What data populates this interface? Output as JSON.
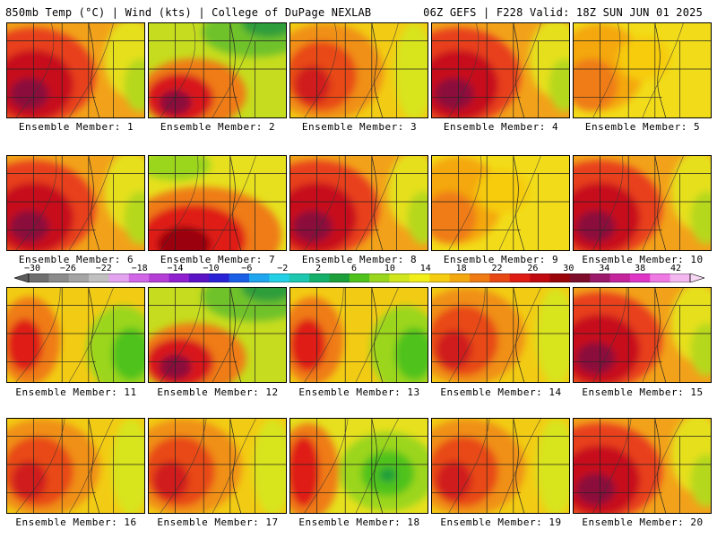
{
  "header": {
    "left": "850mb Temp (°C) | Wind (kts) | College of DuPage NEXLAB",
    "right": "06Z GEFS | F228 Valid: 18Z SUN JUN 01 2025"
  },
  "colorbar": {
    "ticks": [
      "-30",
      "-26",
      "-22",
      "-18",
      "-14",
      "-10",
      "-6",
      "-2",
      "2",
      "6",
      "10",
      "14",
      "18",
      "22",
      "26",
      "30",
      "34",
      "38",
      "42"
    ],
    "colors": [
      "#6f6f6f",
      "#8b8b8b",
      "#a4a4a4",
      "#c0c0c0",
      "#e3a3ef",
      "#d167e6",
      "#b43ed6",
      "#8f1fcf",
      "#5a12c4",
      "#2a22d6",
      "#1a5fe6",
      "#1fa6ef",
      "#23d0e6",
      "#1ec7b0",
      "#14b06a",
      "#1c9e3a",
      "#4fc21e",
      "#9bd61e",
      "#d2e61e",
      "#f2ee1a",
      "#f6cc10",
      "#f4a80f",
      "#ef7b12",
      "#e84814",
      "#df1c14",
      "#c00a10",
      "#9a0509",
      "#7d0d2a",
      "#9b1a6a",
      "#c4249c",
      "#e036c6",
      "#f07ae4",
      "#f4b6ee"
    ],
    "kind": "diverging temperature scale, -34 to 46 °C"
  },
  "panels": [
    {
      "label": "Ensemble Member: 1",
      "theme": "hot-west"
    },
    {
      "label": "Ensemble Member: 2",
      "theme": "hot-southwest-cool-north"
    },
    {
      "label": "Ensemble Member: 3",
      "theme": "warm"
    },
    {
      "label": "Ensemble Member: 4",
      "theme": "hot-west"
    },
    {
      "label": "Ensemble Member: 5",
      "theme": "warm-yellow"
    },
    {
      "label": "Ensemble Member: 6",
      "theme": "hot-west"
    },
    {
      "label": "Ensemble Member: 7",
      "theme": "hot-south"
    },
    {
      "label": "Ensemble Member: 8",
      "theme": "hot-west"
    },
    {
      "label": "Ensemble Member: 9",
      "theme": "warm-yellow"
    },
    {
      "label": "Ensemble Member: 10",
      "theme": "hot-west"
    },
    {
      "label": "Ensemble Member: 11",
      "theme": "warm-green-east"
    },
    {
      "label": "Ensemble Member: 12",
      "theme": "hot-southwest-cool-north"
    },
    {
      "label": "Ensemble Member: 13",
      "theme": "warm-green-east"
    },
    {
      "label": "Ensemble Member: 14",
      "theme": "warm"
    },
    {
      "label": "Ensemble Member: 15",
      "theme": "hot-west"
    },
    {
      "label": "Ensemble Member: 16",
      "theme": "warm"
    },
    {
      "label": "Ensemble Member: 17",
      "theme": "warm"
    },
    {
      "label": "Ensemble Member: 18",
      "theme": "green-center"
    },
    {
      "label": "Ensemble Member: 19",
      "theme": "warm"
    },
    {
      "label": "Ensemble Member: 20",
      "theme": "hot-west"
    }
  ]
}
